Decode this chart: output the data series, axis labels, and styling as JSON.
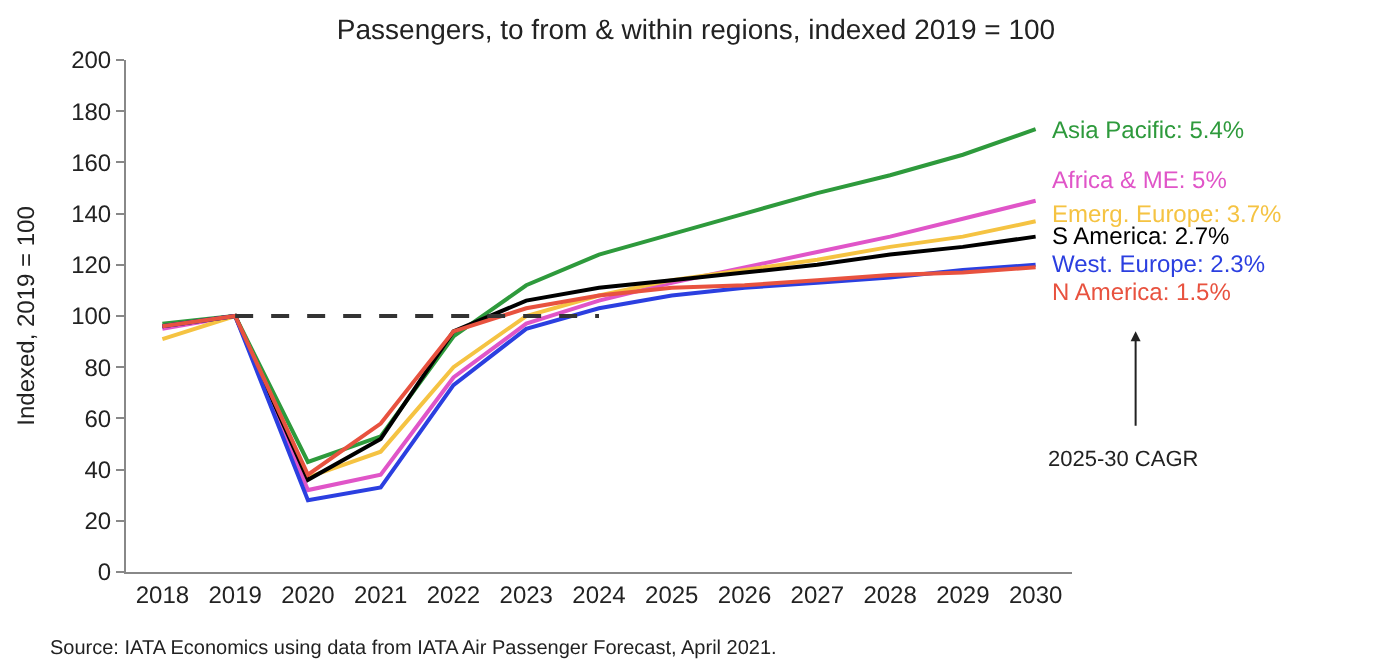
{
  "chart_data": {
    "type": "line",
    "title": "Passengers, to from & within regions, indexed 2019 = 100",
    "ylabel": "Indexed, 2019 = 100",
    "categories": [
      "2018",
      "2019",
      "2020",
      "2021",
      "2022",
      "2023",
      "2024",
      "2025",
      "2026",
      "2027",
      "2028",
      "2029",
      "2030"
    ],
    "series": [
      {
        "name": "Asia Pacific: 5.4%",
        "color": "#2e9a3c",
        "values": [
          97,
          100,
          43,
          53,
          92,
          112,
          124,
          132,
          140,
          148,
          155,
          163,
          173
        ]
      },
      {
        "name": "Africa & ME: 5%",
        "color": "#e055c8",
        "values": [
          95,
          100,
          32,
          38,
          76,
          97,
          106,
          113,
          119,
          125,
          131,
          138,
          145
        ]
      },
      {
        "name": "Emerg. Europe: 3.7%",
        "color": "#f5c342",
        "values": [
          91,
          100,
          37,
          47,
          80,
          100,
          108,
          114,
          118,
          122,
          127,
          131,
          137
        ]
      },
      {
        "name": "S America: 2.7%",
        "color": "#000000",
        "values": [
          96,
          100,
          36,
          52,
          94,
          106,
          111,
          114,
          117,
          120,
          124,
          127,
          131
        ]
      },
      {
        "name": "West. Europe: 2.3%",
        "color": "#2b3fe0",
        "values": [
          96,
          100,
          28,
          33,
          73,
          95,
          103,
          108,
          111,
          113,
          115,
          118,
          120
        ]
      },
      {
        "name": "N America: 1.5%",
        "color": "#e8523f",
        "values": [
          96,
          100,
          38,
          58,
          94,
          103,
          108,
          111,
          112,
          114,
          116,
          117,
          119
        ]
      },
      {
        "color": "#333333",
        "line_style": "dashed",
        "values": [
          null,
          100,
          100,
          100,
          100,
          100,
          100,
          null,
          null,
          null,
          null,
          null,
          null
        ]
      }
    ],
    "ylim": [
      0,
      200
    ],
    "yticks": [
      0,
      20,
      40,
      60,
      80,
      100,
      120,
      140,
      160,
      180,
      200
    ],
    "legend": false,
    "line_style": "solid",
    "marker": "none",
    "annotations": [
      "2025-30 CAGR",
      "Source: IATA Economics using data from IATA Air Passenger Forecast, April 2021."
    ]
  }
}
